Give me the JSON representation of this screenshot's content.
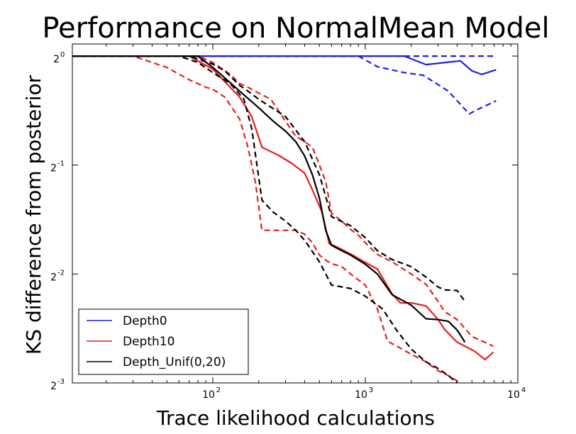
{
  "chart_data": {
    "type": "line",
    "title": "Performance on NormalMean Model",
    "xlabel": "Trace likelihood calculations",
    "ylabel": "KS difference from posterior",
    "xscale": "log10",
    "yscale": "log2",
    "xlim": [
      12,
      10000
    ],
    "ylim": [
      0.125,
      1.08
    ],
    "x_ticks": [
      {
        "base": "10",
        "exp": "2",
        "value": 100
      },
      {
        "base": "10",
        "exp": "3",
        "value": 1000
      },
      {
        "base": "10",
        "exp": "4",
        "value": 10000
      }
    ],
    "y_ticks": [
      {
        "base": "2",
        "exp": "0",
        "value": 1
      },
      {
        "base": "2",
        "exp": "-1",
        "value": 0.5
      },
      {
        "base": "2",
        "exp": "-2",
        "value": 0.25
      },
      {
        "base": "2",
        "exp": "-3",
        "value": 0.125
      }
    ],
    "grid": false,
    "legend_position": "lower-left",
    "series": [
      {
        "name": "Depth0",
        "color": "#1f1fe6",
        "style": "solid",
        "x": [
          12,
          1000,
          1800,
          2500,
          4200,
          5000,
          5800,
          7200
        ],
        "y": [
          1.0,
          1.0,
          1.0,
          0.947,
          0.97,
          0.91,
          0.89,
          0.917
        ]
      },
      {
        "name": "Depth0 upper",
        "color": "#1f1fe6",
        "style": "dashed",
        "x": [
          12,
          7000
        ],
        "y": [
          1.0,
          1.0
        ]
      },
      {
        "name": "Depth0 lower",
        "color": "#1f1fe6",
        "style": "dashed",
        "x": [
          12,
          900,
          1200,
          1800,
          2400,
          3500,
          4800,
          5300,
          7200
        ],
        "y": [
          1.0,
          1.0,
          0.935,
          0.9,
          0.885,
          0.8,
          0.692,
          0.708,
          0.752
        ]
      },
      {
        "name": "Depth10",
        "color": "#e81e1e",
        "style": "solid",
        "x": [
          12,
          70,
          100,
          150,
          180,
          210,
          270,
          330,
          400,
          450,
          520,
          580,
          650,
          800,
          1000,
          1200,
          1500,
          1700,
          2000,
          2500,
          3000,
          3300,
          4000,
          5200,
          6100,
          6900
        ],
        "y": [
          1.0,
          1.0,
          0.92,
          0.77,
          0.68,
          0.56,
          0.532,
          0.505,
          0.475,
          0.427,
          0.371,
          0.303,
          0.297,
          0.284,
          0.269,
          0.258,
          0.22,
          0.208,
          0.208,
          0.204,
          0.187,
          0.176,
          0.162,
          0.153,
          0.145,
          0.152
        ]
      },
      {
        "name": "Depth10 upper",
        "color": "#e81e1e",
        "style": "dashed",
        "x": [
          12,
          80,
          100,
          130,
          150,
          170,
          200,
          240,
          300,
          350,
          400,
          450,
          500,
          550,
          600,
          700,
          800,
          900,
          1000,
          1200,
          1500,
          2000,
          2500,
          3000,
          3300,
          4000,
          5000,
          6900
        ],
        "y": [
          1.0,
          1.0,
          0.96,
          0.89,
          0.84,
          0.82,
          0.79,
          0.76,
          0.66,
          0.6,
          0.58,
          0.56,
          0.5,
          0.45,
          0.368,
          0.35,
          0.332,
          0.32,
          0.305,
          0.283,
          0.27,
          0.25,
          0.234,
          0.21,
          0.197,
          0.187,
          0.168,
          0.158
        ]
      },
      {
        "name": "Depth10 lower",
        "color": "#e81e1e",
        "style": "dashed",
        "x": [
          12,
          30,
          50,
          70,
          90,
          100,
          120,
          150,
          170,
          190,
          210,
          250,
          300,
          350,
          400,
          450,
          500,
          550,
          600,
          700,
          800,
          1000,
          1200,
          1400,
          1700,
          2000,
          2500,
          3000,
          3500,
          4200,
          4600
        ],
        "y": [
          1.0,
          1.0,
          0.93,
          0.86,
          0.82,
          0.81,
          0.77,
          0.67,
          0.56,
          0.45,
          0.33,
          0.33,
          0.33,
          0.33,
          0.322,
          0.305,
          0.282,
          0.273,
          0.267,
          0.262,
          0.25,
          0.233,
          0.2,
          0.163,
          0.156,
          0.15,
          0.143,
          0.135,
          0.131,
          0.125,
          0.12
        ]
      },
      {
        "name": "Depth_Unif(0,20)",
        "color": "#000000",
        "style": "solid",
        "x": [
          12,
          60,
          80,
          100,
          120,
          150,
          200,
          250,
          300,
          350,
          400,
          450,
          500,
          550,
          600,
          700,
          800,
          1000,
          1200,
          1500,
          2000,
          2500,
          3000,
          3500,
          4000,
          4500
        ],
        "y": [
          1.0,
          1.0,
          1.0,
          0.93,
          0.87,
          0.8,
          0.72,
          0.66,
          0.62,
          0.58,
          0.53,
          0.47,
          0.405,
          0.33,
          0.3,
          0.29,
          0.282,
          0.266,
          0.25,
          0.219,
          0.205,
          0.188,
          0.187,
          0.185,
          0.175,
          0.162
        ]
      },
      {
        "name": "Depth_Unif(0,20) upper",
        "color": "#000000",
        "style": "dashed",
        "x": [
          12,
          70,
          100,
          120,
          150,
          170,
          200,
          300,
          400,
          500,
          600,
          800,
          1000,
          1200,
          1500,
          2000,
          2500,
          3000,
          3300,
          4000,
          4500
        ],
        "y": [
          1.0,
          1.0,
          0.95,
          0.91,
          0.83,
          0.8,
          0.76,
          0.68,
          0.58,
          0.47,
          0.36,
          0.34,
          0.315,
          0.29,
          0.274,
          0.262,
          0.245,
          0.23,
          0.226,
          0.225,
          0.21
        ]
      },
      {
        "name": "Depth_Unif(0,20) lower",
        "color": "#000000",
        "style": "dashed",
        "x": [
          12,
          60,
          80,
          100,
          130,
          160,
          180,
          210,
          250,
          300,
          350,
          400,
          500,
          600,
          800,
          1000,
          1300,
          1600,
          2000,
          2500,
          3000,
          3500,
          4500
        ],
        "y": [
          1.0,
          1.0,
          0.96,
          0.9,
          0.84,
          0.76,
          0.63,
          0.4,
          0.37,
          0.35,
          0.33,
          0.31,
          0.27,
          0.233,
          0.228,
          0.217,
          0.2,
          0.175,
          0.155,
          0.143,
          0.137,
          0.131,
          0.12
        ]
      }
    ]
  },
  "legend": {
    "items": [
      {
        "label": "Depth0",
        "color": "#1f1fe6"
      },
      {
        "label": "Depth10",
        "color": "#e81e1e"
      },
      {
        "label": "Depth_Unif(0,20)",
        "color": "#000000"
      }
    ]
  }
}
